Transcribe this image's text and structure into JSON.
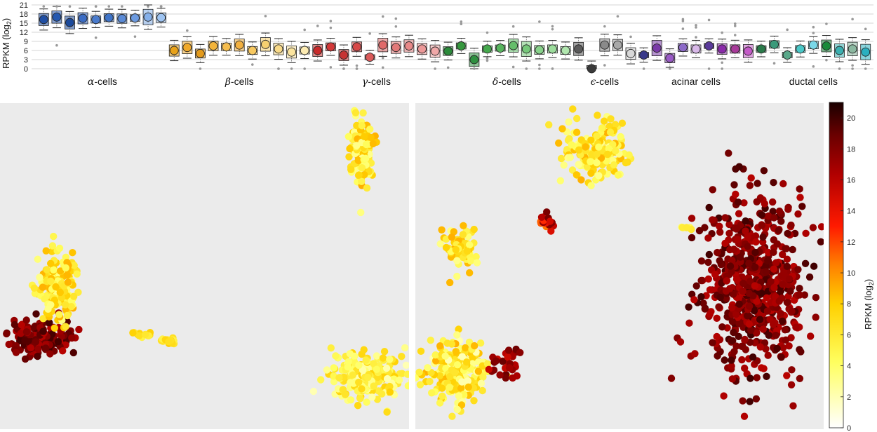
{
  "chart_data": [
    {
      "type": "box",
      "ylabel": "RPKM (log",
      "ylabel_sub": "2",
      "ylabel_close": ")",
      "ylim": [
        0,
        21
      ],
      "yticks": [
        0,
        3,
        6,
        9,
        12,
        15,
        18,
        21
      ],
      "grid": true,
      "groups": [
        {
          "label": "α-cells",
          "prefix": "α",
          "suffix": "-cells",
          "colors": [
            "#1f4ea3",
            "#2458b0",
            "#1b4a9c",
            "#3b6cc4",
            "#4a7bcc",
            "#3f74c8",
            "#5a8ad6",
            "#6d9be0",
            "#85b0ea",
            "#9ec4f2"
          ],
          "medians": [
            16.2,
            17.0,
            15.2,
            16.6,
            16.2,
            16.8,
            16.5,
            16.7,
            17.0,
            16.8
          ]
        },
        {
          "label": "β-cells",
          "prefix": "β",
          "suffix": "-cells",
          "colors": [
            "#e8a21a",
            "#f0a92a",
            "#e39a1c",
            "#f3b43a",
            "#f5bd4e",
            "#f2b040",
            "#f7c860",
            "#f6d070",
            "#f9da88",
            "#fbe49e",
            "#fcebb2"
          ],
          "medians": [
            6.0,
            7.0,
            5.0,
            7.5,
            7.2,
            7.8,
            6.0,
            8.0,
            6.5,
            5.5,
            6.0
          ]
        },
        {
          "label": "γ-cells",
          "prefix": "γ",
          "suffix": "-cells",
          "colors": [
            "#c92a2a",
            "#d33838",
            "#c63232",
            "#d74848",
            "#db5a5a",
            "#e06a6a",
            "#e37878",
            "#e88888",
            "#ec9898",
            "#f0a8a8"
          ],
          "medians": [
            6.0,
            7.2,
            4.5,
            7.2,
            3.8,
            7.8,
            7.0,
            7.5,
            6.5,
            5.8
          ]
        },
        {
          "label": "δ-cells",
          "prefix": "δ",
          "suffix": "-cells",
          "colors": [
            "#2a8a3a",
            "#36983f",
            "#2e9040",
            "#45a84d",
            "#56b45d",
            "#64be6a",
            "#76c87a",
            "#88d28b",
            "#9cdc9c",
            "#b0e6ae"
          ],
          "medians": [
            5.8,
            7.5,
            3.0,
            6.5,
            6.8,
            7.6,
            6.5,
            6.2,
            6.5,
            6.0
          ]
        },
        {
          "label": "ϵ-cells",
          "prefix": "ϵ",
          "suffix": "-cells",
          "colors": [
            "#5a5a5a",
            "#3a3a3a",
            "#8a8a8a",
            "#a8a8a8",
            "#d8d8d8"
          ],
          "medians": [
            6.5,
            0.0,
            7.8,
            7.8,
            5.0
          ]
        },
        {
          "label": "acinar cells",
          "prefix": "",
          "suffix": "acinar cells",
          "colors": [
            "#3a3a8a",
            "#7a3aa8",
            "#9a5ac6",
            "#8c6ac8",
            "#d8b8e8",
            "#5a3a9a",
            "#8a2aaa",
            "#a83a9a",
            "#c45ac8"
          ],
          "medians": [
            4.5,
            6.8,
            3.5,
            7.0,
            6.5,
            7.5,
            6.5,
            6.5,
            5.8
          ]
        },
        {
          "label": "ductal cells",
          "prefix": "",
          "suffix": "ductal cells",
          "colors": [
            "#2a7a4a",
            "#3a9a7a",
            "#5aa88a",
            "#4ac8c8",
            "#7ad8e8",
            "#1a8a3a",
            "#3ab0b0",
            "#8ab8a0",
            "#2ab0c0"
          ],
          "medians": [
            6.5,
            8.0,
            4.5,
            6.5,
            7.8,
            7.5,
            6.0,
            6.5,
            5.5
          ]
        }
      ]
    },
    {
      "type": "scatter",
      "panel": "left",
      "clusters": [
        {
          "cx": 0.885,
          "cy": 0.145,
          "rx": 0.03,
          "ry": 0.1,
          "n": 110,
          "vmin": 3,
          "vmax": 9
        },
        {
          "cx": 0.9,
          "cy": 0.84,
          "rx": 0.08,
          "ry": 0.07,
          "n": 220,
          "vmin": 2,
          "vmax": 8
        },
        {
          "cx": 0.095,
          "cy": 0.725,
          "rx": 0.07,
          "ry": 0.055,
          "n": 180,
          "vmin": 16,
          "vmax": 20
        },
        {
          "cx": 0.14,
          "cy": 0.56,
          "rx": 0.05,
          "ry": 0.11,
          "n": 160,
          "vmin": 3,
          "vmax": 9
        },
        {
          "cx": 0.35,
          "cy": 0.71,
          "rx": 0.02,
          "ry": 0.01,
          "n": 12,
          "vmin": 5,
          "vmax": 8
        },
        {
          "cx": 0.41,
          "cy": 0.73,
          "rx": 0.03,
          "ry": 0.015,
          "n": 18,
          "vmin": 5,
          "vmax": 9
        }
      ]
    },
    {
      "type": "scatter",
      "panel": "right",
      "clusters": [
        {
          "cx": 0.44,
          "cy": 0.145,
          "rx": 0.08,
          "ry": 0.09,
          "n": 160,
          "vmin": 3,
          "vmax": 9
        },
        {
          "cx": 0.32,
          "cy": 0.36,
          "rx": 0.02,
          "ry": 0.02,
          "n": 25,
          "vmin": 10,
          "vmax": 19
        },
        {
          "cx": 0.11,
          "cy": 0.45,
          "rx": 0.04,
          "ry": 0.06,
          "n": 70,
          "vmin": 3,
          "vmax": 9
        },
        {
          "cx": 0.66,
          "cy": 0.38,
          "rx": 0.02,
          "ry": 0.012,
          "n": 6,
          "vmin": 4,
          "vmax": 7
        },
        {
          "cx": 0.83,
          "cy": 0.56,
          "rx": 0.12,
          "ry": 0.27,
          "n": 650,
          "vmin": 16,
          "vmax": 20
        },
        {
          "cx": 0.1,
          "cy": 0.82,
          "rx": 0.07,
          "ry": 0.1,
          "n": 230,
          "vmin": 2,
          "vmax": 9
        },
        {
          "cx": 0.22,
          "cy": 0.8,
          "rx": 0.04,
          "ry": 0.05,
          "n": 30,
          "vmin": 15,
          "vmax": 19
        }
      ]
    },
    {
      "type": "colorbar",
      "label": "RPKM (log",
      "label_sub": "2",
      "label_close": ")",
      "range": [
        0,
        21
      ],
      "ticks": [
        0,
        2,
        4,
        6,
        8,
        10,
        12,
        14,
        16,
        18,
        20
      ]
    }
  ]
}
